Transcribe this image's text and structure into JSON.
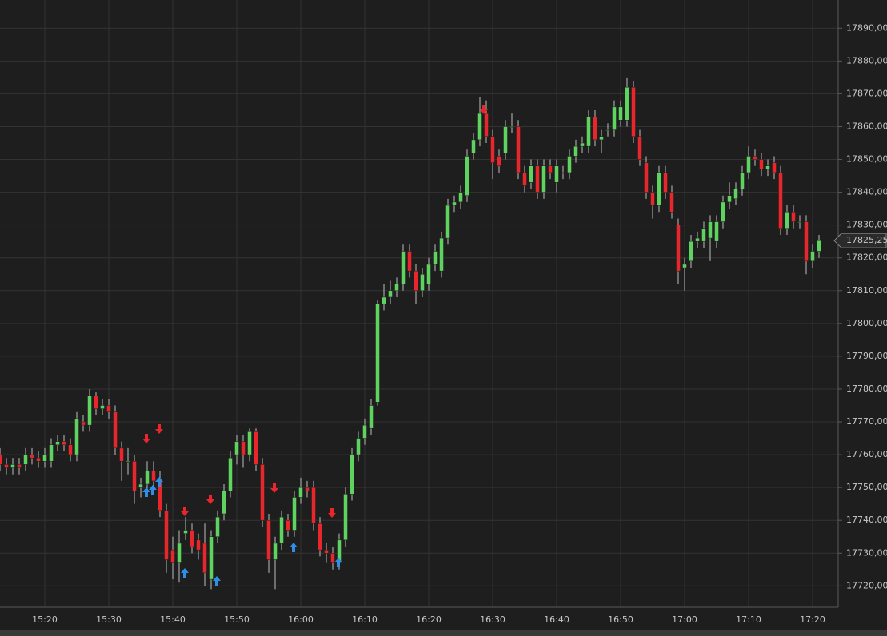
{
  "chart_data": {
    "type": "candlestick",
    "categories": [
      null,
      null,
      null,
      null,
      null,
      null,
      null,
      "15:20",
      null,
      null,
      null,
      null,
      null,
      null,
      null,
      null,
      null,
      "15:30",
      null,
      null,
      null,
      null,
      null,
      null,
      null,
      null,
      null,
      "15:40",
      null,
      null,
      null,
      null,
      null,
      null,
      null,
      null,
      null,
      "15:50",
      null,
      null,
      null,
      null,
      null,
      null,
      null,
      null,
      null,
      "16:00",
      null,
      null,
      null,
      null,
      null,
      null,
      null,
      null,
      null,
      "16:10",
      null,
      null,
      null,
      null,
      null,
      null,
      null,
      null,
      null,
      "16:20",
      null,
      null,
      null,
      null,
      null,
      null,
      null,
      null,
      null,
      "16:30",
      null,
      null,
      null,
      null,
      null,
      null,
      null,
      null,
      null,
      "16:40",
      null,
      null,
      null,
      null,
      null,
      null,
      null,
      null,
      null,
      "16:50",
      null,
      null,
      null,
      null,
      null,
      null,
      null,
      null,
      null,
      "17:00",
      null,
      null,
      null,
      null,
      null,
      null,
      null,
      null,
      null,
      "17:10",
      null,
      null,
      null,
      null,
      null,
      null,
      null,
      null,
      null,
      "17:20",
      null
    ],
    "open": [
      17760,
      17757,
      17756,
      17757,
      17757,
      17760,
      17759,
      17758,
      17758,
      17763,
      17764,
      17763,
      17760,
      17770,
      17769,
      17778,
      17774,
      17775,
      17773,
      17762,
      17758,
      17758,
      17750,
      17751,
      17755,
      17752,
      17743,
      17731,
      17727,
      17736,
      17737,
      17734,
      17733,
      17722,
      17735,
      17742,
      17749,
      17760,
      17764,
      17760,
      17767,
      17757,
      17740,
      17728,
      17733,
      17740,
      17737,
      17747,
      17750,
      17750,
      17739,
      17731,
      17730,
      17727,
      17734,
      17748,
      17760,
      17765,
      17768,
      17776,
      17806,
      17808,
      17810,
      17812,
      17822,
      17816,
      17810,
      17812,
      17818,
      17816,
      17826,
      17836,
      17837,
      17839,
      17852,
      17856,
      17864,
      17857,
      17851,
      17852,
      17860,
      17860,
      17846,
      17843,
      17848,
      17840,
      17848,
      17843,
      17846,
      17846,
      17851,
      17854,
      17854,
      17863,
      17856,
      17859,
      17859,
      17862,
      17862,
      17872,
      17857,
      17849,
      17840,
      17836,
      17846,
      17840,
      17830,
      17817,
      17819,
      17825,
      17825,
      17826,
      17825,
      17831,
      17837,
      17838,
      17841,
      17846,
      17851,
      17850,
      17847,
      17849,
      17846,
      17829,
      17834,
      17831,
      17831,
      17819,
      17822
    ],
    "high": [
      17762,
      17759,
      17759,
      17759,
      17762,
      17762,
      17761,
      17762,
      17765,
      17766,
      17766,
      17765,
      17773,
      17772,
      17780,
      17779,
      17777,
      17777,
      17775,
      17764,
      17762,
      17760,
      17753,
      17758,
      17758,
      17755,
      17745,
      17735,
      17737,
      17741,
      17739,
      17736,
      17739,
      17737,
      17743,
      17751,
      17761,
      17766,
      17766,
      17768,
      17768,
      17759,
      17742,
      17735,
      17743,
      17742,
      17749,
      17753,
      17752,
      17752,
      17741,
      17733,
      17732,
      17736,
      17750,
      17762,
      17767,
      17771,
      17777,
      17807,
      17812,
      17813,
      17814,
      17824,
      17824,
      17818,
      17817,
      17820,
      17824,
      17828,
      17838,
      17839,
      17842,
      17853,
      17858,
      17869,
      17868,
      17859,
      17853,
      17862,
      17864,
      17862,
      17848,
      17850,
      17850,
      17850,
      17850,
      17850,
      17848,
      17853,
      17856,
      17857,
      17865,
      17865,
      17859,
      17861,
      17868,
      17868,
      17875,
      17874,
      17859,
      17851,
      17842,
      17848,
      17848,
      17842,
      17832,
      17820,
      17827,
      17828,
      17831,
      17833,
      17833,
      17839,
      17843,
      17843,
      17848,
      17854,
      17853,
      17852,
      17850,
      17851,
      17848,
      17836,
      17836,
      17833,
      17833,
      17824,
      17827
    ],
    "low": [
      17755,
      17754,
      17754,
      17754,
      17755,
      17757,
      17756,
      17756,
      17756,
      17761,
      17761,
      17758,
      17758,
      17767,
      17767,
      17772,
      17772,
      17771,
      17760,
      17752,
      17754,
      17745,
      17747,
      17749,
      17750,
      17741,
      17724,
      17722,
      17721,
      17734,
      17730,
      17728,
      17720,
      17719,
      17733,
      17740,
      17747,
      17757,
      17756,
      17758,
      17755,
      17738,
      17724,
      17719,
      17731,
      17735,
      17735,
      17745,
      17747,
      17737,
      17729,
      17727,
      17725,
      17725,
      17732,
      17746,
      17758,
      17763,
      17766,
      17775,
      17804,
      17806,
      17808,
      17810,
      17814,
      17806,
      17808,
      17810,
      17816,
      17814,
      17824,
      17834,
      17835,
      17837,
      17850,
      17854,
      17855,
      17844,
      17846,
      17850,
      17858,
      17844,
      17840,
      17841,
      17838,
      17838,
      17844,
      17840,
      17844,
      17844,
      17849,
      17852,
      17852,
      17854,
      17852,
      17857,
      17857,
      17860,
      17860,
      17855,
      17848,
      17838,
      17832,
      17834,
      17838,
      17832,
      17812,
      17810,
      17817,
      17823,
      17823,
      17819,
      17823,
      17829,
      17835,
      17836,
      17839,
      17844,
      17848,
      17845,
      17845,
      17844,
      17827,
      17827,
      17829,
      17829,
      17815,
      17817,
      17820
    ],
    "close": [
      17757,
      17756,
      17757,
      17756,
      17760,
      17759,
      17758,
      17760,
      17763,
      17764,
      17763,
      17760,
      17771,
      17769,
      17778,
      17774,
      17775,
      17773,
      17762,
      17758,
      17758,
      17749,
      17751,
      17755,
      17752,
      17743,
      17728,
      17727,
      17733,
      17737,
      17732,
      17731,
      17724,
      17735,
      17741,
      17749,
      17759,
      17764,
      17760,
      17767,
      17757,
      17740,
      17728,
      17733,
      17741,
      17737,
      17747,
      17750,
      17749,
      17739,
      17731,
      17730,
      17727,
      17734,
      17748,
      17760,
      17765,
      17769,
      17775,
      17806,
      17808,
      17810,
      17812,
      17822,
      17816,
      17810,
      17815,
      17818,
      17822,
      17826,
      17836,
      17837,
      17840,
      17851,
      17856,
      17864,
      17857,
      17849,
      17848,
      17860,
      17860,
      17846,
      17842,
      17848,
      17840,
      17848,
      17846,
      17848,
      17846,
      17851,
      17854,
      17855,
      17863,
      17856,
      17857,
      17859,
      17866,
      17866,
      17872,
      17857,
      17850,
      17840,
      17836,
      17846,
      17840,
      17834,
      17816,
      17818,
      17825,
      17826,
      17829,
      17831,
      17831,
      17837,
      17839,
      17841,
      17846,
      17851,
      17850,
      17847,
      17848,
      17846,
      17829,
      17834,
      17831,
      17831,
      17819,
      17822,
      17825.25
    ],
    "up_color": "#5fd35f",
    "down_color": "#e8262b",
    "ylim": [
      17713.5,
      17898.6
    ],
    "yticks": [
      {
        "value": 17720,
        "label": "17720,00"
      },
      {
        "value": 17730,
        "label": "17730,00"
      },
      {
        "value": 17740,
        "label": "17740,00"
      },
      {
        "value": 17750,
        "label": "17750,00"
      },
      {
        "value": 17760,
        "label": "17760,00"
      },
      {
        "value": 17770,
        "label": "17770,00"
      },
      {
        "value": 17780,
        "label": "17780,00"
      },
      {
        "value": 17790,
        "label": "17790,00"
      },
      {
        "value": 17800,
        "label": "17800,00"
      },
      {
        "value": 17810,
        "label": "17810,00"
      },
      {
        "value": 17820,
        "label": "17820,00"
      },
      {
        "value": 17830,
        "label": "17830,00"
      },
      {
        "value": 17840,
        "label": "17840,00"
      },
      {
        "value": 17850,
        "label": "17850,00"
      },
      {
        "value": 17860,
        "label": "17860,00"
      },
      {
        "value": 17870,
        "label": "17870,00"
      },
      {
        "value": 17880,
        "label": "17880,00"
      },
      {
        "value": 17890,
        "label": "17890,00"
      }
    ],
    "last_price": {
      "value": 17825.25,
      "label": "17825,25"
    },
    "grid": true
  }
}
